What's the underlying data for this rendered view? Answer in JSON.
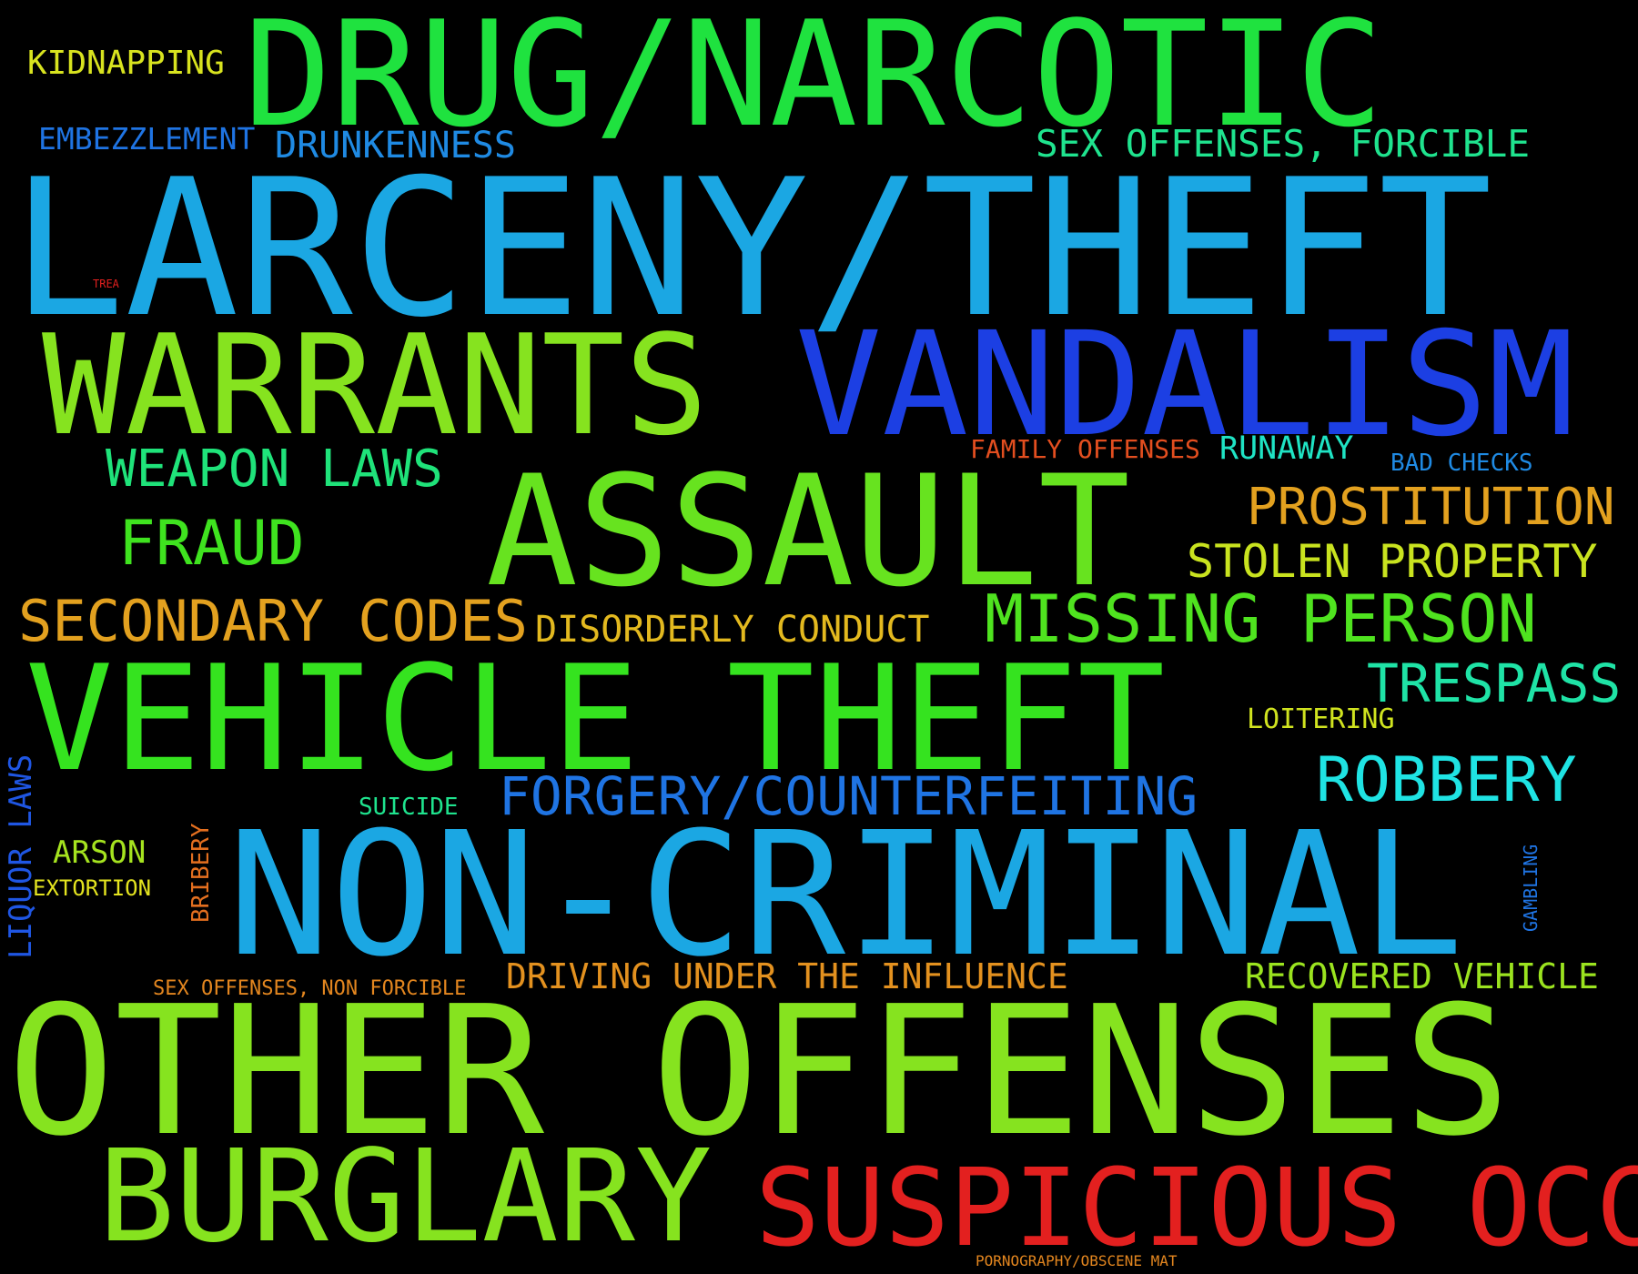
{
  "cloud": {
    "background": "#000000",
    "words": [
      {
        "text": "DRUG/NARCOTIC",
        "color": "#1fe23f"
      },
      {
        "text": "LARCENY/THEFT",
        "color": "#1ba7e3"
      },
      {
        "text": "WARRANTS",
        "color": "#86e31f"
      },
      {
        "text": "VANDALISM",
        "color": "#1c3fe3"
      },
      {
        "text": "ASSAULT",
        "color": "#67e31f"
      },
      {
        "text": "VEHICLE THEFT",
        "color": "#35e31f"
      },
      {
        "text": "NON-CRIMINAL",
        "color": "#1ba7e3"
      },
      {
        "text": "OTHER OFFENSES",
        "color": "#86e31f"
      },
      {
        "text": "BURGLARY",
        "color": "#86e31f"
      },
      {
        "text": "SUSPICIOUS OCC",
        "color": "#e3201f"
      },
      {
        "text": "KIDNAPPING",
        "color": "#d8e31f"
      },
      {
        "text": "EMBEZZLEMENT",
        "color": "#1f74e3"
      },
      {
        "text": "DRUNKENNESS",
        "color": "#1f8ae3"
      },
      {
        "text": "SEX OFFENSES, FORCIBLE",
        "color": "#1fe38e"
      },
      {
        "text": "TREA",
        "color": "#e3201f"
      },
      {
        "text": "WEAPON LAWS",
        "color": "#1fe37a"
      },
      {
        "text": "FAMILY OFFENSES",
        "color": "#e34e1f"
      },
      {
        "text": "RUNAWAY",
        "color": "#1fe3c4"
      },
      {
        "text": "BAD CHECKS",
        "color": "#1f8ae3"
      },
      {
        "text": "FRAUD",
        "color": "#3fe31f"
      },
      {
        "text": "PROSTITUTION",
        "color": "#e3a11f"
      },
      {
        "text": "STOLEN PROPERTY",
        "color": "#c9e31f"
      },
      {
        "text": "SECONDARY CODES",
        "color": "#e3a11f"
      },
      {
        "text": "DISORDERLY CONDUCT",
        "color": "#e3b91f"
      },
      {
        "text": "MISSING PERSON",
        "color": "#4fe31f"
      },
      {
        "text": "TRESPASS",
        "color": "#1fe3a6"
      },
      {
        "text": "LOITERING",
        "color": "#d0e31f"
      },
      {
        "text": "FORGERY/COUNTERFEITING",
        "color": "#1f74e3"
      },
      {
        "text": "ROBBERY",
        "color": "#1fe3e3"
      },
      {
        "text": "SUICIDE",
        "color": "#1fe38e"
      },
      {
        "text": "ARSON",
        "color": "#a5e31f"
      },
      {
        "text": "EXTORTION",
        "color": "#e3e31f"
      },
      {
        "text": "LIQUOR LAWS",
        "color": "#1f56e3"
      },
      {
        "text": "BRIBERY",
        "color": "#e36f1f"
      },
      {
        "text": "GAMBLING",
        "color": "#1f74e3"
      },
      {
        "text": "SEX OFFENSES, NON FORCIBLE",
        "color": "#e3861f"
      },
      {
        "text": "DRIVING UNDER THE INFLUENCE",
        "color": "#e3911f"
      },
      {
        "text": "RECOVERED VEHICLE",
        "color": "#9be31f"
      },
      {
        "text": "PORNOGRAPHY/OBSCENE MAT",
        "color": "#e3861f"
      }
    ]
  }
}
